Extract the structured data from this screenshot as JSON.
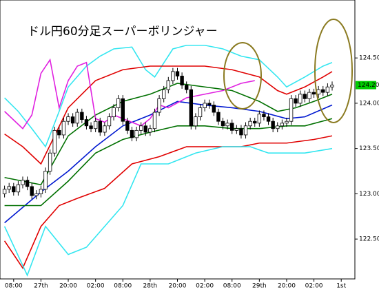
{
  "chart_data": {
    "type": "candlestick",
    "title": "ドル円60分足スーパーボリンジャー",
    "xlim": [
      -1,
      77
    ],
    "ylim": [
      122.06,
      125.14
    ],
    "yticks": [
      {
        "value": 122.5,
        "label": "122.50"
      },
      {
        "value": 123,
        "label": "123.00"
      },
      {
        "value": 123.5,
        "label": "123.50"
      },
      {
        "value": 124,
        "label": "124.00"
      },
      {
        "value": 124.5,
        "label": "124.50"
      }
    ],
    "xticks": [
      {
        "value": 2,
        "label": "08:00"
      },
      {
        "value": 8,
        "label": "27th"
      },
      {
        "value": 14,
        "label": "20:00"
      },
      {
        "value": 20,
        "label": "02:00"
      },
      {
        "value": 26,
        "label": "08:00"
      },
      {
        "value": 32,
        "label": "28th"
      },
      {
        "value": 38,
        "label": "20:00"
      },
      {
        "value": 44,
        "label": "02:00"
      },
      {
        "value": 50,
        "label": "08:00"
      },
      {
        "value": 56,
        "label": "29th"
      },
      {
        "value": 62,
        "label": "20:00"
      },
      {
        "value": 68,
        "label": "02:00"
      },
      {
        "value": 74,
        "label": "1st"
      }
    ],
    "last_price": {
      "value": 124.2,
      "label": "124.20",
      "color": "#00cc00"
    },
    "up_color": "#ffffff",
    "down_color": "#000000",
    "open": [
      123.0,
      123.05,
      123.08,
      123.02,
      123.1,
      123.15,
      123.08,
      122.98,
      123.0,
      123.05,
      123.25,
      123.45,
      123.7,
      123.65,
      123.8,
      123.85,
      123.78,
      123.9,
      123.82,
      123.75,
      123.72,
      123.8,
      123.68,
      123.75,
      123.85,
      123.95,
      124.05,
      123.8,
      123.7,
      123.62,
      123.7,
      123.75,
      123.68,
      123.72,
      123.9,
      124.05,
      124.15,
      124.25,
      124.35,
      124.3,
      124.2,
      124.15,
      123.75,
      123.85,
      123.95,
      124.0,
      123.98,
      123.9,
      123.8,
      123.75,
      123.78,
      123.7,
      123.72,
      123.65,
      123.75,
      123.8,
      123.78,
      123.88,
      123.85,
      123.8,
      123.72,
      123.75,
      123.78,
      123.8,
      124.05,
      124.0,
      124.1,
      124.05,
      124.12,
      124.1,
      124.15,
      124.12,
      124.18
    ],
    "high": [
      123.09,
      123.12,
      123.12,
      123.14,
      123.19,
      123.19,
      123.12,
      123.04,
      123.09,
      123.29,
      123.49,
      123.74,
      123.74,
      123.84,
      123.89,
      123.89,
      123.94,
      123.94,
      123.86,
      123.79,
      123.84,
      123.84,
      123.79,
      123.89,
      123.99,
      124.09,
      124.09,
      123.84,
      123.74,
      123.74,
      123.79,
      123.79,
      123.76,
      123.94,
      124.09,
      124.19,
      124.29,
      124.39,
      124.39,
      124.34,
      124.24,
      124.19,
      123.89,
      123.99,
      124.04,
      124.04,
      124.02,
      123.94,
      123.84,
      123.82,
      123.82,
      123.76,
      123.76,
      123.79,
      123.84,
      123.84,
      123.92,
      123.92,
      123.89,
      123.84,
      123.79,
      123.82,
      123.84,
      124.09,
      124.09,
      124.14,
      124.14,
      124.16,
      124.16,
      124.19,
      124.19,
      124.22,
      124.24
    ],
    "low": [
      122.96,
      123.01,
      122.98,
      122.98,
      123.06,
      123.04,
      122.94,
      122.94,
      122.96,
      123.01,
      123.21,
      123.41,
      123.61,
      123.61,
      123.76,
      123.74,
      123.74,
      123.78,
      123.71,
      123.68,
      123.68,
      123.64,
      123.64,
      123.71,
      123.81,
      123.91,
      123.76,
      123.66,
      123.58,
      123.58,
      123.66,
      123.64,
      123.64,
      123.68,
      123.86,
      124.01,
      124.11,
      124.21,
      124.26,
      124.16,
      124.11,
      123.71,
      123.71,
      123.81,
      123.91,
      123.94,
      123.86,
      123.76,
      123.71,
      123.71,
      123.66,
      123.66,
      123.61,
      123.61,
      123.71,
      123.74,
      123.74,
      123.81,
      123.76,
      123.68,
      123.68,
      123.71,
      123.74,
      123.76,
      123.96,
      123.96,
      124.01,
      124.01,
      124.06,
      124.06,
      124.08,
      124.08,
      124.14
    ],
    "close": [
      123.05,
      123.08,
      123.02,
      123.1,
      123.15,
      123.08,
      122.98,
      123.0,
      123.05,
      123.25,
      123.45,
      123.7,
      123.65,
      123.8,
      123.85,
      123.78,
      123.9,
      123.82,
      123.75,
      123.72,
      123.8,
      123.68,
      123.75,
      123.85,
      123.95,
      124.05,
      123.8,
      123.7,
      123.62,
      123.7,
      123.75,
      123.68,
      123.72,
      123.9,
      124.05,
      124.15,
      124.25,
      124.35,
      124.3,
      124.2,
      124.15,
      123.75,
      123.85,
      123.95,
      124.0,
      123.98,
      123.9,
      123.8,
      123.75,
      123.78,
      123.7,
      123.72,
      123.65,
      123.75,
      123.8,
      123.78,
      123.88,
      123.85,
      123.8,
      123.72,
      123.75,
      123.78,
      123.8,
      124.05,
      124.0,
      124.1,
      124.05,
      124.12,
      124.1,
      124.15,
      124.12,
      124.18,
      124.2
    ],
    "lines": [
      {
        "color": "#33e6f0",
        "x": [
          0,
          3,
          6,
          9,
          12,
          14,
          18,
          21,
          24,
          28,
          31,
          33,
          37,
          40,
          44,
          48,
          52,
          56,
          60,
          62,
          66,
          70,
          72
        ],
        "values": [
          124.06,
          123.91,
          123.72,
          123.52,
          123.91,
          124.18,
          124.41,
          124.52,
          124.6,
          124.62,
          124.37,
          124.29,
          124.6,
          124.64,
          124.64,
          124.6,
          124.52,
          124.48,
          124.29,
          124.18,
          124.29,
          124.41,
          124.45
        ]
      },
      {
        "color": "#e00000",
        "x": [
          0,
          4,
          8,
          14,
          20,
          26,
          32,
          38,
          44,
          50,
          56,
          60,
          62,
          66,
          70,
          72
        ],
        "values": [
          123.66,
          123.52,
          123.33,
          123.95,
          124.25,
          124.37,
          124.41,
          124.41,
          124.41,
          124.37,
          124.29,
          124.14,
          124.1,
          124.18,
          124.29,
          124.35
        ]
      },
      {
        "color": "#007000",
        "x": [
          0,
          8,
          14,
          20,
          26,
          32,
          38,
          44,
          50,
          56,
          60,
          64,
          68,
          72
        ],
        "values": [
          123.18,
          123.1,
          123.64,
          123.87,
          124.02,
          124.1,
          124.22,
          124.18,
          124.14,
          124.02,
          123.91,
          123.95,
          124.02,
          124.1
        ]
      },
      {
        "color": "#0018d0",
        "x": [
          0,
          8,
          14,
          20,
          26,
          32,
          38,
          44,
          50,
          56,
          62,
          66,
          72
        ],
        "values": [
          122.68,
          123.02,
          123.25,
          123.52,
          123.75,
          123.87,
          124.02,
          123.98,
          123.95,
          123.91,
          123.83,
          123.85,
          123.98
        ]
      },
      {
        "color": "#007000",
        "x": [
          0,
          8,
          14,
          20,
          26,
          32,
          38,
          44,
          50,
          56,
          62,
          66,
          72
        ],
        "values": [
          122.87,
          122.87,
          123.14,
          123.45,
          123.6,
          123.68,
          123.75,
          123.75,
          123.72,
          123.72,
          123.75,
          123.75,
          123.83
        ]
      },
      {
        "color": "#e00000",
        "x": [
          0,
          4,
          8,
          12,
          16,
          22,
          28,
          34,
          40,
          46,
          52,
          56,
          62,
          68,
          72
        ],
        "values": [
          122.48,
          122.18,
          122.64,
          122.87,
          122.95,
          123.06,
          123.33,
          123.41,
          123.52,
          123.52,
          123.52,
          123.56,
          123.56,
          123.6,
          123.64
        ]
      },
      {
        "color": "#33e6f0",
        "x": [
          0,
          5,
          9,
          14,
          18,
          22,
          26,
          30,
          36,
          42,
          48,
          54,
          58,
          62,
          66,
          72
        ],
        "values": [
          122.64,
          122.1,
          122.64,
          122.33,
          122.41,
          122.64,
          122.87,
          123.33,
          123.33,
          123.45,
          123.52,
          123.52,
          123.45,
          123.45,
          123.45,
          123.5
        ]
      },
      {
        "color": "#e020e0",
        "x": [
          0,
          4,
          6,
          8,
          10,
          12,
          14,
          16,
          18,
          20,
          22,
          24,
          26,
          30,
          32,
          34,
          36,
          40,
          44,
          48,
          52,
          55
        ],
        "values": [
          123.91,
          123.72,
          123.87,
          124.33,
          124.48,
          123.95,
          124.25,
          124.41,
          124.45,
          123.83,
          123.79,
          123.87,
          123.83,
          123.75,
          123.83,
          123.98,
          123.95,
          124.06,
          124.1,
          124.14,
          124.22,
          124.25
        ]
      }
    ]
  }
}
